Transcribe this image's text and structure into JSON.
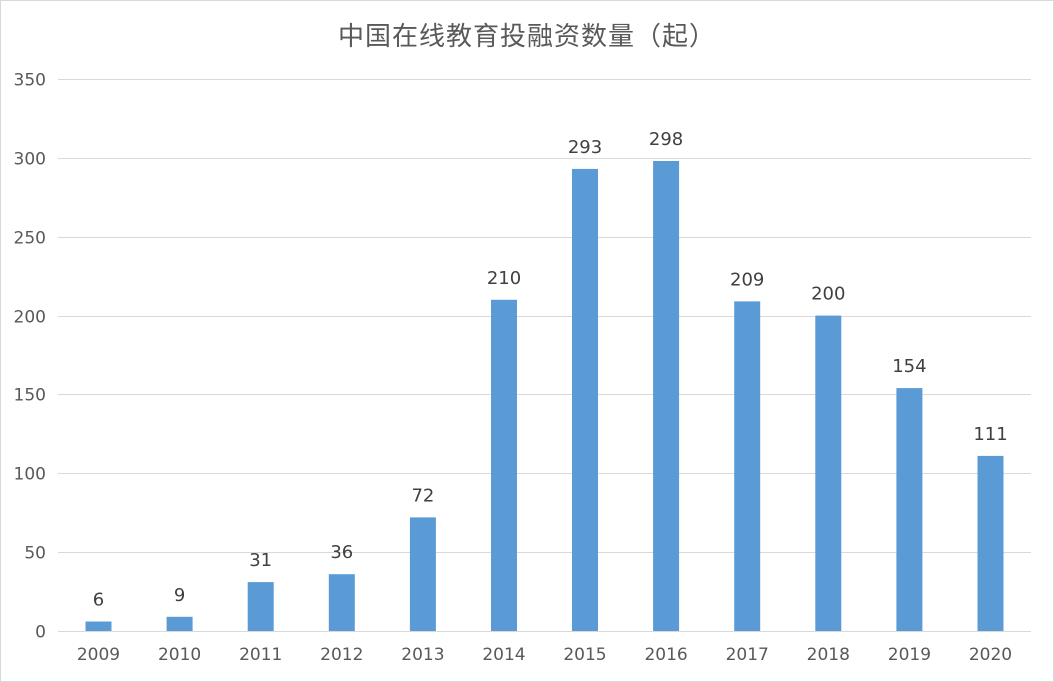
{
  "chart_data": {
    "type": "bar",
    "title": "中国在线教育投融资数量（起）",
    "categories": [
      "2009",
      "2010",
      "2011",
      "2012",
      "2013",
      "2014",
      "2015",
      "2016",
      "2017",
      "2018",
      "2019",
      "2020"
    ],
    "values": [
      6,
      9,
      31,
      36,
      72,
      210,
      293,
      298,
      209,
      200,
      154,
      111
    ],
    "data_labels": [
      "6",
      "9",
      "31",
      "36",
      "72",
      "210",
      "293",
      "298",
      "209",
      "200",
      "154",
      "111"
    ],
    "y_ticks": [
      "0",
      "50",
      "100",
      "150",
      "200",
      "250",
      "300",
      "350"
    ],
    "ylim": [
      0,
      350
    ],
    "grid": true,
    "legend": "none",
    "bar_color": "#5b9bd5",
    "grid_color": "#d9d9d9",
    "text_color": "#595959"
  }
}
